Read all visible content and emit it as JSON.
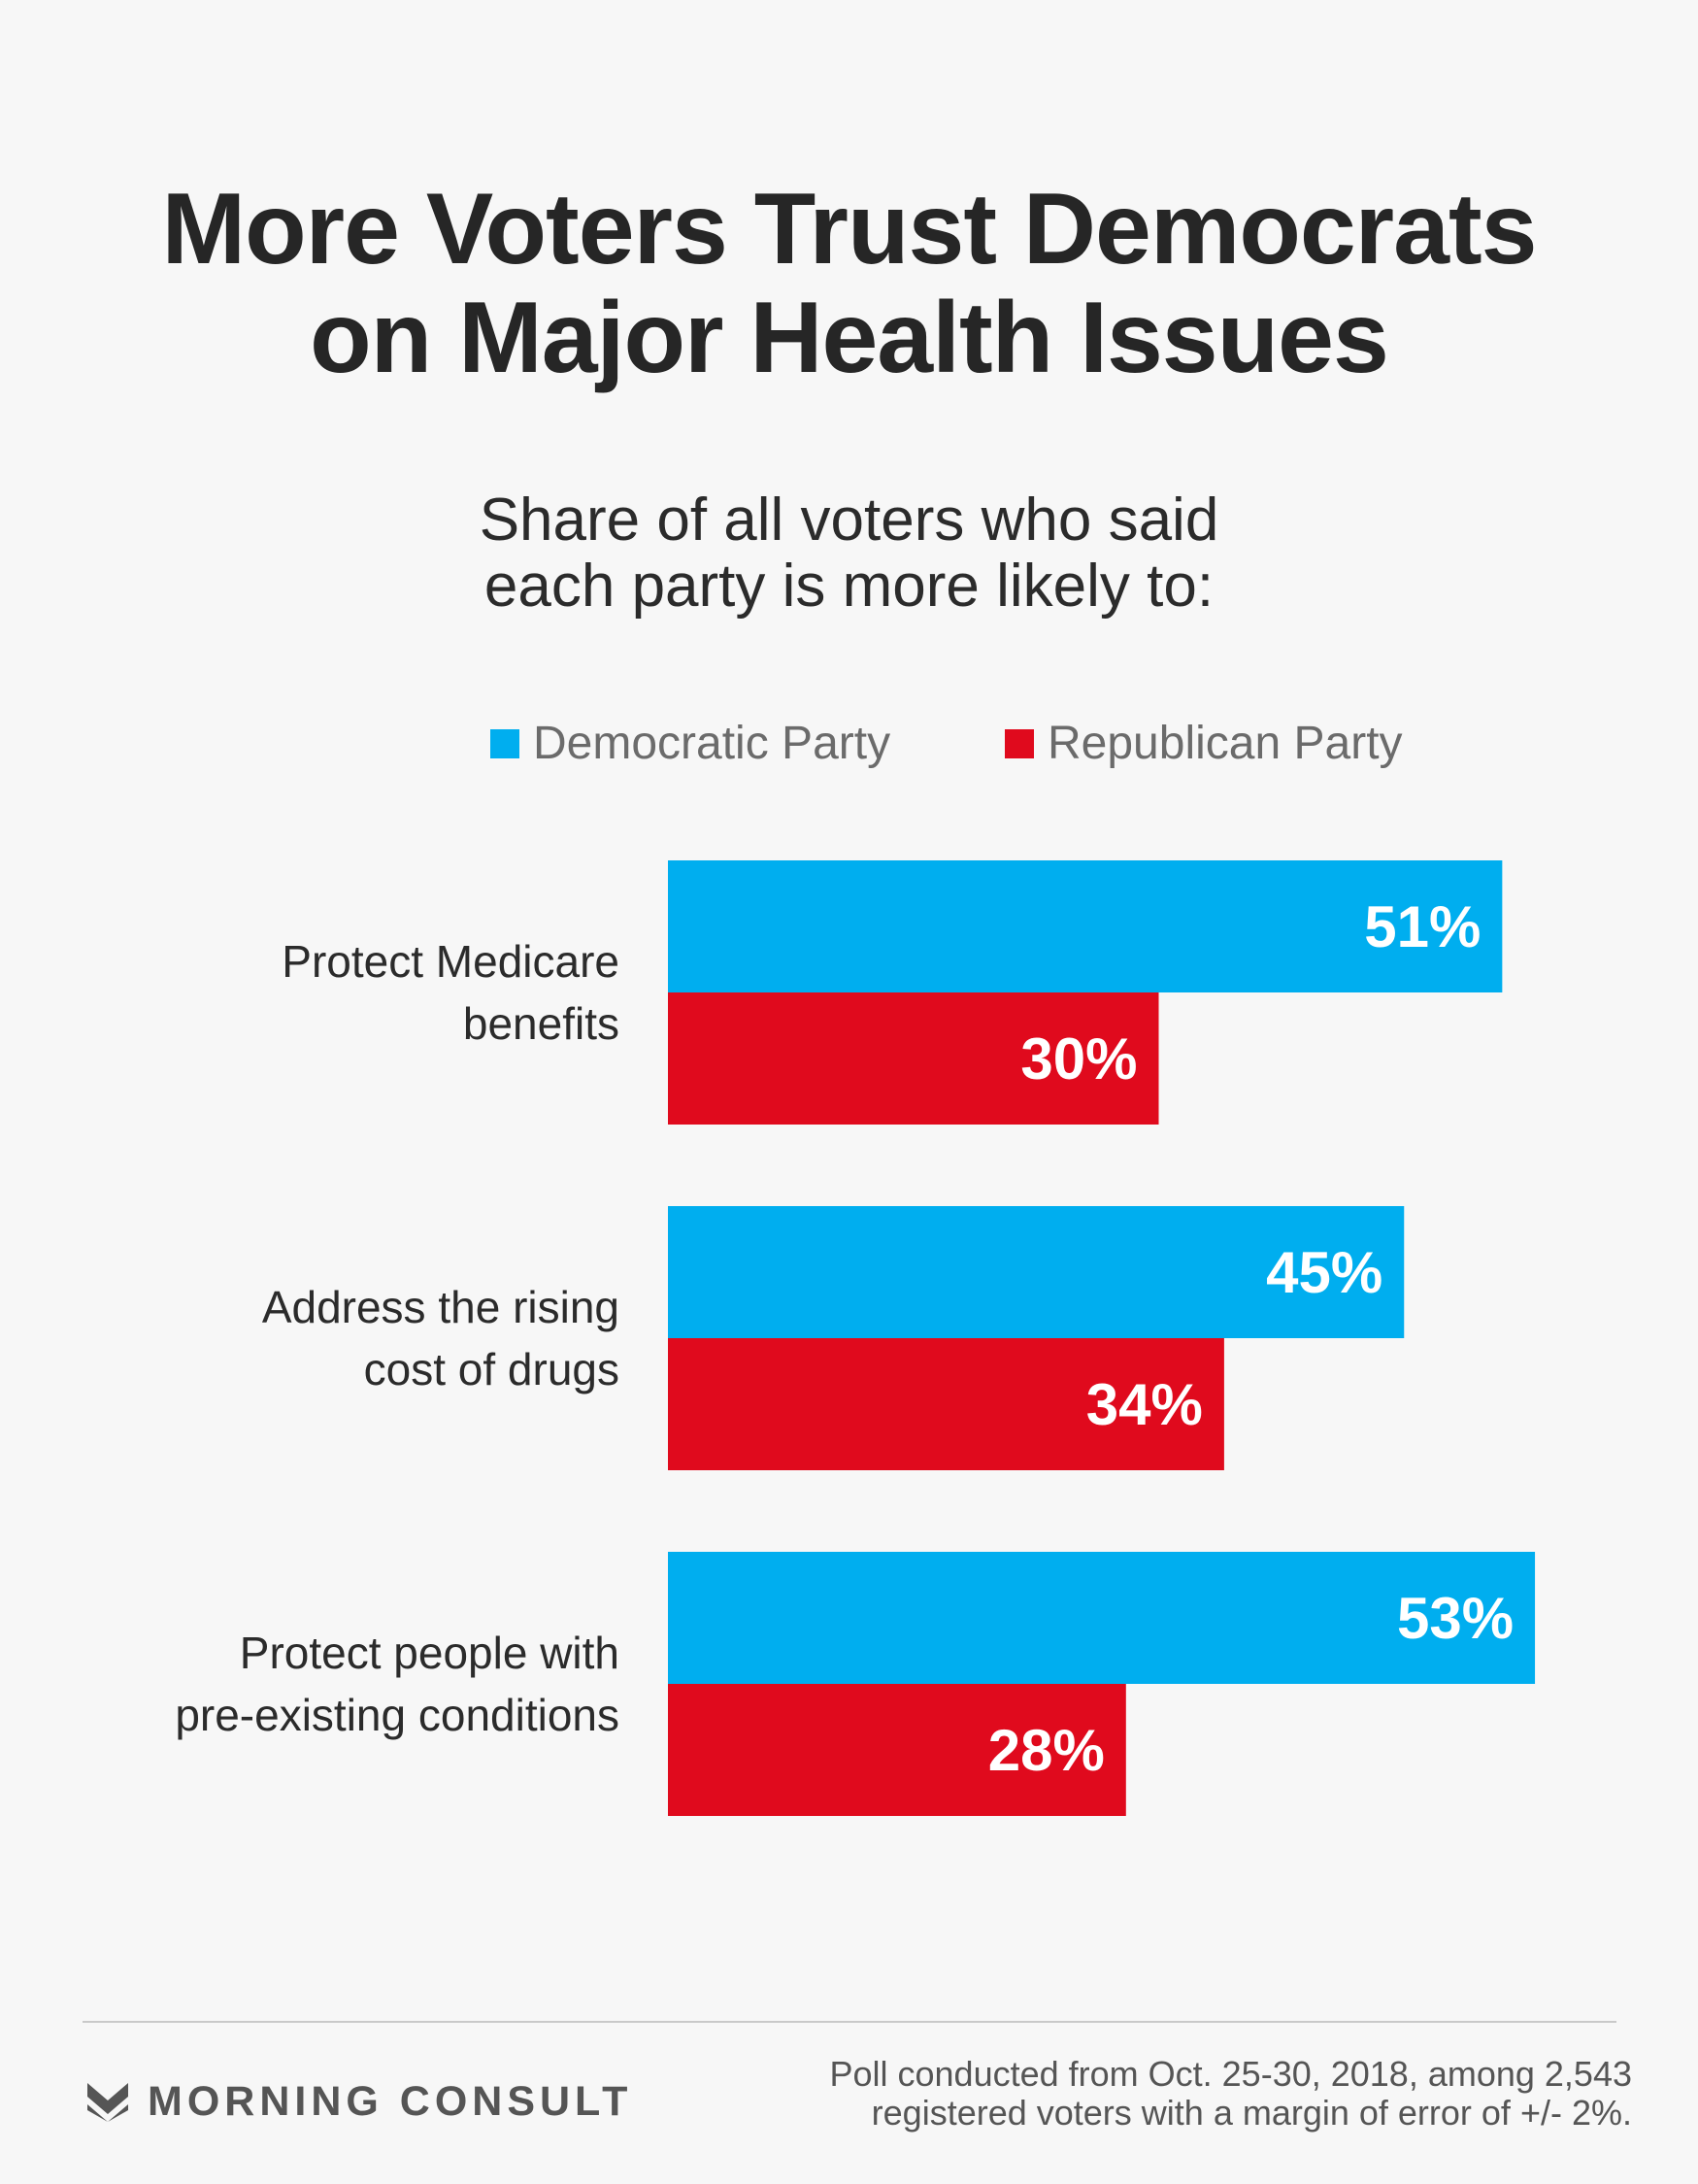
{
  "header": {
    "title_line1": "More Voters Trust Democrats",
    "title_line2": "on Major Health Issues",
    "subtitle_line1": "Share of all voters who said",
    "subtitle_line2": "each party is more likely to:"
  },
  "colors": {
    "democratic": "#00aeef",
    "republican": "#e00a1d"
  },
  "chart_data": {
    "type": "bar",
    "orientation": "horizontal",
    "title": "More Voters Trust Democrats on Major Health Issues",
    "subtitle": "Share of all voters who said each party is more likely to:",
    "categories": [
      [
        "Protect Medicare",
        "benefits"
      ],
      [
        "Address the rising",
        "cost of drugs"
      ],
      [
        "Protect people with",
        "pre-existing conditions"
      ]
    ],
    "series": [
      {
        "name": "Democratic Party",
        "values": [
          51,
          45,
          53
        ],
        "labels": [
          "51%",
          "45%",
          "53%"
        ]
      },
      {
        "name": "Republican Party",
        "values": [
          30,
          34,
          28
        ],
        "labels": [
          "30%",
          "34%",
          "28%"
        ]
      }
    ],
    "xlim": [
      0,
      60
    ],
    "legend": "top",
    "grid": false
  },
  "footer": {
    "brand": "MORNING CONSULT",
    "note_line1": "Poll conducted from Oct. 25-30, 2018, among 2,543",
    "note_line2": "registered voters with a margin of error of +/- 2%."
  }
}
